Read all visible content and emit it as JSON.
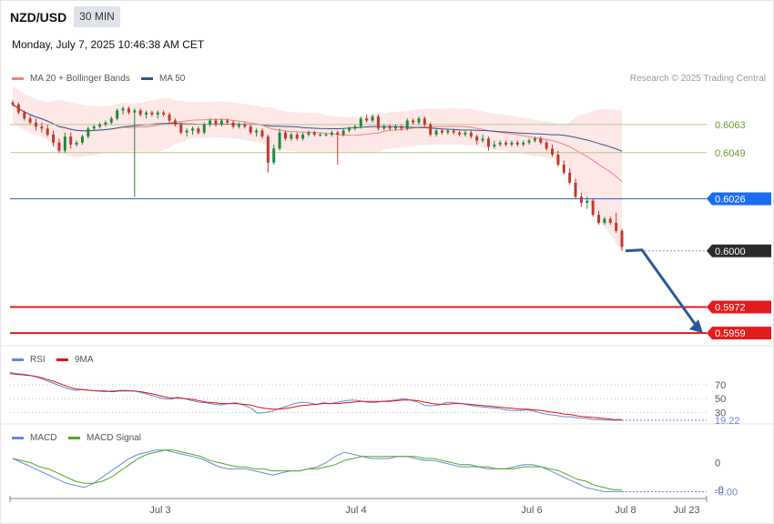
{
  "header": {
    "symbol": "NZD/USD",
    "timeframe": "30 MIN",
    "datetime": "Monday, July 7, 2025 10:46:38 AM CET"
  },
  "legend": {
    "ma20_label": "MA 20 + Bollinger Bands",
    "ma50_label": "MA 50",
    "copyright": "Research © 2025 Trading Central"
  },
  "colors": {
    "ma20": "#f08080",
    "bollinger_fill": "#fde3e3",
    "ma50": "#34558b",
    "bull": "#1f8a3c",
    "bear": "#c0392b",
    "support_line": "#e31b1b",
    "resistance_line": "#b5cc8e",
    "pivot_line": "#2e64c8",
    "current_price_badge": "#2b2b2b",
    "pivot_badge": "#1a6cf0",
    "support_badge": "#e31b1b",
    "arrow": "#2c5896",
    "rsi": "#6a86d8",
    "rsi_ma": "#e01010",
    "macd": "#6a86d8",
    "macd_signal": "#4ea820"
  },
  "chart_data": [
    {
      "type": "candlestick",
      "name": "price",
      "y_range": [
        0.5955,
        0.6082
      ],
      "grid": false,
      "price_levels": [
        {
          "label": "0.6063",
          "value": 0.6063,
          "kind": "resistance"
        },
        {
          "label": "0.6049",
          "value": 0.6049,
          "kind": "resistance"
        },
        {
          "label": "0.6026",
          "value": 0.6026,
          "kind": "pivot"
        },
        {
          "label": "0.6000",
          "value": 0.6,
          "kind": "current"
        },
        {
          "label": "0.5972",
          "value": 0.5972,
          "kind": "support"
        },
        {
          "label": "0.5959",
          "value": 0.5959,
          "kind": "support"
        }
      ],
      "forecast_arrow": {
        "from": 0.6,
        "to": 0.5959
      },
      "x_ticks": [
        "Jul 3",
        "Jul 4",
        "Jul 6",
        "Jul 8",
        "Jul 23"
      ],
      "ohlc": [
        [
          0.6074,
          0.6075,
          0.6072,
          0.6073
        ],
        [
          0.6073,
          0.6074,
          0.6068,
          0.6069
        ],
        [
          0.6069,
          0.607,
          0.6065,
          0.6066
        ],
        [
          0.6066,
          0.6068,
          0.6063,
          0.6064
        ],
        [
          0.6064,
          0.6066,
          0.606,
          0.6062
        ],
        [
          0.6062,
          0.6064,
          0.6059,
          0.6061
        ],
        [
          0.6061,
          0.6063,
          0.6057,
          0.6058
        ],
        [
          0.6058,
          0.606,
          0.6052,
          0.6054
        ],
        [
          0.6054,
          0.6056,
          0.6049,
          0.605
        ],
        [
          0.605,
          0.6059,
          0.6049,
          0.6057
        ],
        [
          0.6057,
          0.6059,
          0.6051,
          0.6053
        ],
        [
          0.6053,
          0.6055,
          0.6052,
          0.6054
        ],
        [
          0.6054,
          0.6058,
          0.6053,
          0.6057
        ],
        [
          0.6057,
          0.6062,
          0.6056,
          0.6061
        ],
        [
          0.6061,
          0.6063,
          0.606,
          0.6062
        ],
        [
          0.6062,
          0.6064,
          0.6061,
          0.6063
        ],
        [
          0.6063,
          0.6065,
          0.6062,
          0.6064
        ],
        [
          0.6064,
          0.6067,
          0.6063,
          0.6066
        ],
        [
          0.6066,
          0.6071,
          0.6065,
          0.607
        ],
        [
          0.607,
          0.6072,
          0.6068,
          0.6071
        ],
        [
          0.6071,
          0.6072,
          0.6068,
          0.6069
        ],
        [
          0.6069,
          0.6071,
          0.6027,
          0.607
        ],
        [
          0.607,
          0.6071,
          0.6067,
          0.6068
        ],
        [
          0.6068,
          0.607,
          0.6066,
          0.6069
        ],
        [
          0.6069,
          0.607,
          0.6067,
          0.6068
        ],
        [
          0.6068,
          0.607,
          0.6066,
          0.6069
        ],
        [
          0.6069,
          0.607,
          0.6067,
          0.6068
        ],
        [
          0.6068,
          0.6069,
          0.6064,
          0.6065
        ],
        [
          0.6065,
          0.6066,
          0.6062,
          0.6063
        ],
        [
          0.6063,
          0.6064,
          0.6058,
          0.6059
        ],
        [
          0.6059,
          0.6061,
          0.6057,
          0.606
        ],
        [
          0.606,
          0.6062,
          0.6058,
          0.6061
        ],
        [
          0.6061,
          0.6062,
          0.6058,
          0.6059
        ],
        [
          0.6059,
          0.6064,
          0.6058,
          0.6063
        ],
        [
          0.6063,
          0.6066,
          0.6062,
          0.6065
        ],
        [
          0.6065,
          0.6066,
          0.6062,
          0.6063
        ],
        [
          0.6063,
          0.6066,
          0.6062,
          0.6065
        ],
        [
          0.6065,
          0.6066,
          0.6063,
          0.6064
        ],
        [
          0.6064,
          0.6065,
          0.6061,
          0.6062
        ],
        [
          0.6062,
          0.6064,
          0.6061,
          0.6063
        ],
        [
          0.6063,
          0.6064,
          0.6061,
          0.6062
        ],
        [
          0.6062,
          0.6063,
          0.6058,
          0.6059
        ],
        [
          0.6059,
          0.6061,
          0.6057,
          0.606
        ],
        [
          0.606,
          0.6061,
          0.6056,
          0.6057
        ],
        [
          0.6057,
          0.6058,
          0.6039,
          0.6044
        ],
        [
          0.6044,
          0.6053,
          0.6043,
          0.6051
        ],
        [
          0.6051,
          0.6061,
          0.605,
          0.6059
        ],
        [
          0.6059,
          0.606,
          0.6055,
          0.6056
        ],
        [
          0.6056,
          0.6059,
          0.6055,
          0.6058
        ],
        [
          0.6058,
          0.6059,
          0.6055,
          0.6056
        ],
        [
          0.6056,
          0.6059,
          0.6055,
          0.6058
        ],
        [
          0.6058,
          0.606,
          0.6057,
          0.6059
        ],
        [
          0.6059,
          0.606,
          0.6057,
          0.6058
        ],
        [
          0.6058,
          0.6059,
          0.6057,
          0.6058
        ],
        [
          0.6058,
          0.6059,
          0.6057,
          0.6058
        ],
        [
          0.6058,
          0.606,
          0.6057,
          0.6059
        ],
        [
          0.6059,
          0.606,
          0.6043,
          0.6058
        ],
        [
          0.6058,
          0.6061,
          0.6057,
          0.606
        ],
        [
          0.606,
          0.6062,
          0.6059,
          0.6061
        ],
        [
          0.6061,
          0.6063,
          0.606,
          0.6062
        ],
        [
          0.6062,
          0.6067,
          0.6061,
          0.6066
        ],
        [
          0.6066,
          0.6068,
          0.6064,
          0.6065
        ],
        [
          0.6065,
          0.6068,
          0.6064,
          0.6067
        ],
        [
          0.6067,
          0.6068,
          0.606,
          0.6061
        ],
        [
          0.6061,
          0.6063,
          0.606,
          0.6062
        ],
        [
          0.6062,
          0.6063,
          0.606,
          0.6061
        ],
        [
          0.6061,
          0.6063,
          0.606,
          0.6062
        ],
        [
          0.6062,
          0.6063,
          0.606,
          0.6061
        ],
        [
          0.6061,
          0.6066,
          0.606,
          0.6065
        ],
        [
          0.6065,
          0.6066,
          0.6063,
          0.6064
        ],
        [
          0.6064,
          0.6067,
          0.6063,
          0.6066
        ],
        [
          0.6066,
          0.6067,
          0.6062,
          0.6063
        ],
        [
          0.6063,
          0.6064,
          0.6057,
          0.6058
        ],
        [
          0.6058,
          0.6061,
          0.6057,
          0.606
        ],
        [
          0.606,
          0.6061,
          0.6058,
          0.6059
        ],
        [
          0.6059,
          0.6061,
          0.6058,
          0.606
        ],
        [
          0.606,
          0.6061,
          0.6058,
          0.6059
        ],
        [
          0.6059,
          0.606,
          0.6057,
          0.6058
        ],
        [
          0.6058,
          0.606,
          0.6057,
          0.6059
        ],
        [
          0.6059,
          0.606,
          0.6056,
          0.6057
        ],
        [
          0.6057,
          0.6058,
          0.6053,
          0.6055
        ],
        [
          0.6055,
          0.6058,
          0.6054,
          0.6056
        ],
        [
          0.6056,
          0.6057,
          0.605,
          0.6052
        ],
        [
          0.6052,
          0.6055,
          0.6051,
          0.6053
        ],
        [
          0.6053,
          0.6055,
          0.6052,
          0.6054
        ],
        [
          0.6054,
          0.6055,
          0.6052,
          0.6053
        ],
        [
          0.6053,
          0.6055,
          0.6052,
          0.6054
        ],
        [
          0.6054,
          0.6055,
          0.6052,
          0.6053
        ],
        [
          0.6053,
          0.6055,
          0.6052,
          0.6054
        ],
        [
          0.6054,
          0.6056,
          0.6053,
          0.6055
        ],
        [
          0.6055,
          0.6057,
          0.6054,
          0.6056
        ],
        [
          0.6056,
          0.6057,
          0.6053,
          0.6054
        ],
        [
          0.6054,
          0.6055,
          0.605,
          0.6051
        ],
        [
          0.6051,
          0.6053,
          0.6047,
          0.6048
        ],
        [
          0.6048,
          0.605,
          0.6042,
          0.6043
        ],
        [
          0.6043,
          0.6045,
          0.6038,
          0.6039
        ],
        [
          0.6039,
          0.6041,
          0.6033,
          0.6034
        ],
        [
          0.6034,
          0.6036,
          0.6026,
          0.6027
        ],
        [
          0.6027,
          0.6029,
          0.6022,
          0.6024
        ],
        [
          0.6024,
          0.6027,
          0.6021,
          0.6025
        ],
        [
          0.6025,
          0.6026,
          0.6017,
          0.6018
        ],
        [
          0.6018,
          0.602,
          0.6013,
          0.6014
        ],
        [
          0.6014,
          0.6017,
          0.6013,
          0.6016
        ],
        [
          0.6016,
          0.6017,
          0.6013,
          0.6014
        ],
        [
          0.6014,
          0.6019,
          0.6009,
          0.601
        ],
        [
          0.601,
          0.6011,
          0.6,
          0.6002
        ]
      ]
    },
    {
      "type": "line",
      "name": "RSI",
      "legend": [
        "RSI",
        "9MA"
      ],
      "tick_labels": [
        "70",
        "50",
        "30"
      ],
      "ticks": [
        70,
        50,
        30
      ],
      "y_range": [
        15,
        100
      ],
      "last_value_label": "19.22",
      "series": [
        {
          "name": "RSI",
          "values": [
            88,
            86,
            85,
            83,
            80,
            76,
            72,
            68,
            64,
            62,
            63,
            62,
            61,
            60,
            61,
            62,
            62,
            61,
            59,
            56,
            53,
            50,
            49,
            52,
            50,
            47,
            45,
            44,
            42,
            41,
            43,
            44,
            41,
            37,
            29,
            30,
            32,
            36,
            39,
            43,
            45,
            44,
            42,
            44,
            43,
            45,
            47,
            48,
            47,
            45,
            44,
            46,
            47,
            48,
            50,
            48,
            45,
            40,
            40,
            41,
            45,
            44,
            43,
            41,
            39,
            38,
            37,
            36,
            34,
            33,
            33,
            34,
            32,
            29,
            27,
            26,
            24,
            24,
            22,
            22,
            20,
            20,
            19,
            19,
            19
          ]
        },
        {
          "name": "9MA",
          "values": [
            86,
            85,
            84,
            83,
            81,
            78,
            75,
            71,
            67,
            64,
            63,
            62,
            61,
            61,
            60,
            61,
            61,
            61,
            60,
            58,
            56,
            53,
            51,
            51,
            50,
            49,
            47,
            45,
            44,
            43,
            43,
            43,
            42,
            41,
            38,
            36,
            35,
            35,
            36,
            38,
            40,
            41,
            42,
            43,
            43,
            43,
            44,
            45,
            46,
            46,
            46,
            46,
            46,
            47,
            48,
            48,
            47,
            45,
            43,
            42,
            42,
            43,
            43,
            42,
            41,
            40,
            39,
            38,
            37,
            36,
            35,
            35,
            34,
            33,
            31,
            30,
            28,
            27,
            25,
            24,
            23,
            22,
            21,
            20,
            20
          ]
        }
      ]
    },
    {
      "type": "line",
      "name": "MACD",
      "legend": [
        "MACD",
        "MACD Signal"
      ],
      "tick_labels": [
        "0",
        "-0"
      ],
      "ticks": [
        0.0,
        -0.0013
      ],
      "y_range": [
        -0.0016,
        0.0009
      ],
      "last_value_label": "-0.00",
      "series": [
        {
          "name": "MACD",
          "values": [
            0.0002,
            0.0,
            -0.0002,
            -0.0004,
            -0.0006,
            -0.0008,
            -0.001,
            -0.0011,
            -0.0012,
            -0.001,
            -0.0007,
            -0.0004,
            -0.0001,
            0.0002,
            0.0004,
            0.0005,
            0.0006,
            0.0006,
            0.0005,
            0.0004,
            0.0003,
            0.0002,
            0.0,
            -0.0002,
            -0.0003,
            -0.0003,
            -0.0003,
            -0.0004,
            -0.0005,
            -0.0006,
            -0.0005,
            -0.0004,
            -0.0004,
            -0.0003,
            -0.0002,
            0.0,
            0.0003,
            0.0005,
            0.0004,
            0.0003,
            0.0002,
            0.0002,
            0.0002,
            0.0003,
            0.0003,
            0.0002,
            0.0001,
            0.0001,
            0.0,
            -0.0001,
            -0.0002,
            -0.0002,
            -0.0002,
            -0.0003,
            -0.0003,
            -0.0003,
            -0.0002,
            -0.0001,
            -0.0001,
            -0.0002,
            -0.0004,
            -0.0006,
            -0.0008,
            -0.001,
            -0.0012,
            -0.0013,
            -0.0014,
            -0.0014,
            -0.0014
          ]
        },
        {
          "name": "MACD Signal",
          "values": [
            0.0002,
            0.0001,
            0.0,
            -0.0002,
            -0.0003,
            -0.0005,
            -0.0007,
            -0.0009,
            -0.001,
            -0.001,
            -0.0009,
            -0.0007,
            -0.0004,
            -0.0001,
            0.0002,
            0.0004,
            0.0005,
            0.0006,
            0.0006,
            0.0005,
            0.0004,
            0.0003,
            0.0001,
            0.0,
            -0.0001,
            -0.0002,
            -0.0002,
            -0.0003,
            -0.0003,
            -0.0004,
            -0.0004,
            -0.0004,
            -0.0004,
            -0.0003,
            -0.0003,
            -0.0002,
            -0.0001,
            0.0001,
            0.0002,
            0.0003,
            0.0003,
            0.0003,
            0.0003,
            0.0003,
            0.0003,
            0.0003,
            0.0002,
            0.0002,
            0.0001,
            0.0,
            -0.0001,
            -0.0001,
            -0.0002,
            -0.0002,
            -0.0003,
            -0.0003,
            -0.0003,
            -0.0002,
            -0.0002,
            -0.0002,
            -0.0003,
            -0.0004,
            -0.0006,
            -0.0008,
            -0.0009,
            -0.0011,
            -0.0012,
            -0.0013,
            -0.0013
          ]
        }
      ]
    }
  ]
}
